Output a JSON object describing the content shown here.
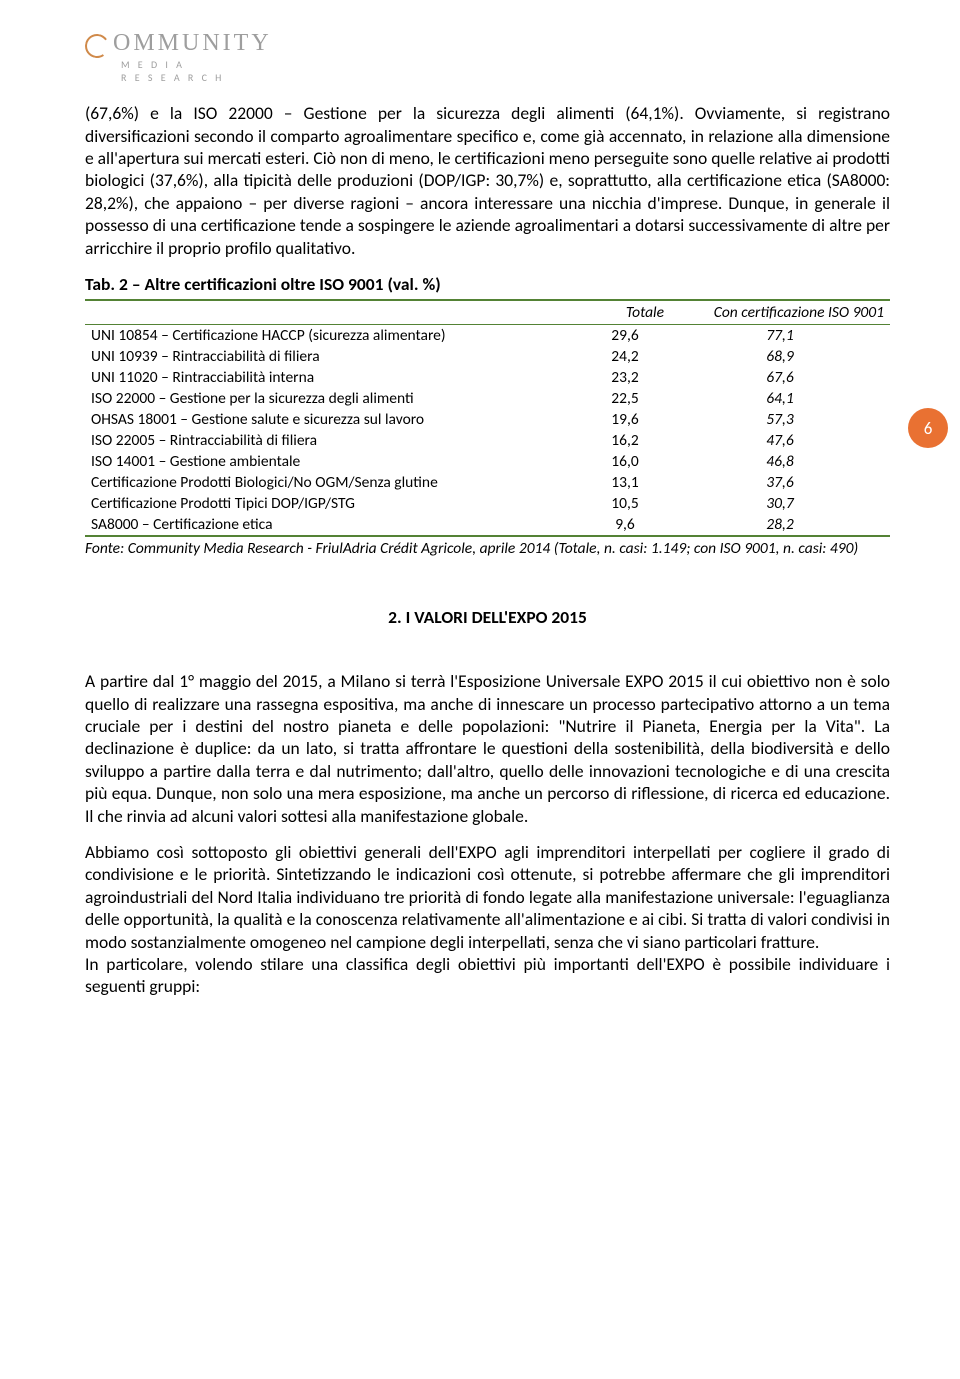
{
  "logo": {
    "main": "OMMUNITY",
    "sub1": "M E D I A",
    "sub2": "R E S E A R C H"
  },
  "para1": "(67,6%) e la ISO 22000 – Gestione per la sicurezza degli alimenti (64,1%). Ovviamente, si registrano diversificazioni secondo il comparto agroalimentare specifico e, come già accennato, in relazione alla dimensione e all'apertura sui mercati esteri. Ciò non di meno, le certificazioni meno perseguite sono quelle relative ai prodotti biologici (37,6%), alla tipicità delle produzioni (DOP/IGP: 30,7%) e, soprattutto, alla certificazione etica (SA8000: 28,2%), che appaiono – per diverse ragioni – ancora interessare una nicchia d'imprese. Dunque, in generale il possesso di una certificazione tende a sospingere le aziende agroalimentari a dotarsi successivamente di altre per arricchire il proprio profilo qualitativo.",
  "table": {
    "title": "Tab. 2 – Altre certificazioni oltre ISO 9001 (val. %)",
    "columns": [
      "",
      "Totale",
      "Con certificazione ISO 9001"
    ],
    "rows": [
      [
        "UNI 10854 – Certificazione HACCP (sicurezza alimentare)",
        "29,6",
        "77,1"
      ],
      [
        "UNI 10939 – Rintracciabilità di filiera",
        "24,2",
        "68,9"
      ],
      [
        "UNI 11020 – Rintracciabilità interna",
        "23,2",
        "67,6"
      ],
      [
        "ISO 22000 – Gestione per la sicurezza degli alimenti",
        "22,5",
        "64,1"
      ],
      [
        "OHSAS 18001 – Gestione salute e sicurezza sul lavoro",
        "19,6",
        "57,3"
      ],
      [
        "ISO 22005 – Rintracciabilità di filiera",
        "16,2",
        "47,6"
      ],
      [
        "ISO 14001 – Gestione ambientale",
        "16,0",
        "46,8"
      ],
      [
        "Certificazione Prodotti Biologici/No OGM/Senza glutine",
        "13,1",
        "37,6"
      ],
      [
        "Certificazione Prodotti Tipici DOP/IGP/STG",
        "10,5",
        "30,7"
      ],
      [
        "SA8000 – Certificazione etica",
        "9,6",
        "28,2"
      ]
    ],
    "source": "Fonte: Community Media Research - FriulAdria Crédit Agricole, aprile 2014 (Totale, n. casi: 1.149; con ISO 9001, n. casi: 490)",
    "border_color": "#548235"
  },
  "section_heading": "2.  I VALORI DELL'EXPO 2015",
  "para2": "A partire dal 1° maggio del 2015, a Milano si terrà l'Esposizione Universale EXPO 2015 il cui obiettivo non è solo quello di realizzare una rassegna espositiva, ma anche di innescare un processo partecipativo attorno a un tema cruciale per i destini del nostro pianeta e delle popolazioni: \"Nutrire il Pianeta, Energia per la Vita\". La declinazione è duplice: da un lato, si tratta affrontare le questioni della sostenibilità, della biodiversità e dello sviluppo a partire dalla terra e dal nutrimento; dall'altro, quello delle innovazioni tecnologiche e di una crescita più equa. Dunque, non solo una mera esposizione, ma anche un percorso di riflessione, di ricerca ed educazione. Il che rinvia ad alcuni valori sottesi alla manifestazione globale.",
  "para3": "Abbiamo così sottoposto gli obiettivi generali dell'EXPO agli imprenditori interpellati per cogliere il grado di condivisione e le priorità. Sintetizzando le indicazioni così ottenute, si potrebbe affermare che gli imprenditori agroindustriali del Nord Italia individuano tre priorità di fondo legate alla manifestazione universale: l'eguaglianza delle opportunità, la qualità e la conoscenza relativamente all'alimentazione e ai cibi. Si tratta di valori condivisi in modo sostanzialmente omogeneo nel campione degli interpellati, senza che vi siano particolari fratture.",
  "para4": "In particolare, volendo stilare una classifica degli obiettivi più importanti dell'EXPO è possibile individuare i seguenti gruppi:",
  "page_number": "6",
  "badge_color": "#e97132"
}
